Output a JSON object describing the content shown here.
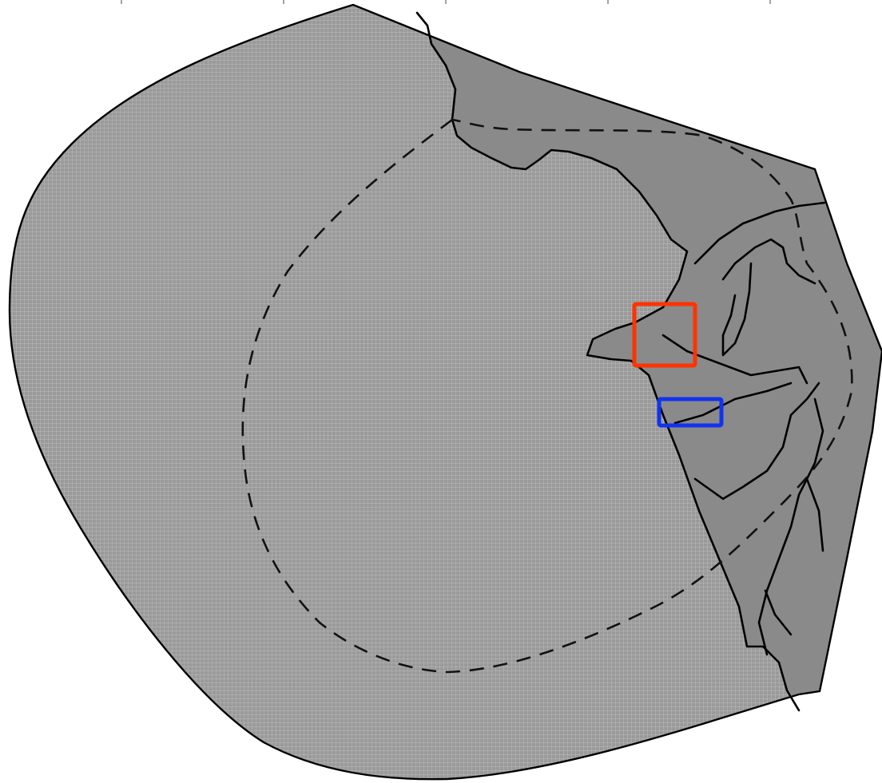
{
  "figure": {
    "top_tick_count": 5,
    "colors": {
      "background": "#ffffff",
      "grid_fill": "#9a9a9a",
      "grid_line": "#c8c8c8",
      "land": "#8a8a8a",
      "outline": "#000000",
      "coastline": "#000000",
      "dashed_boundary": "#111111",
      "highlight_red": "#ff3300",
      "highlight_blue": "#1133ee"
    }
  }
}
